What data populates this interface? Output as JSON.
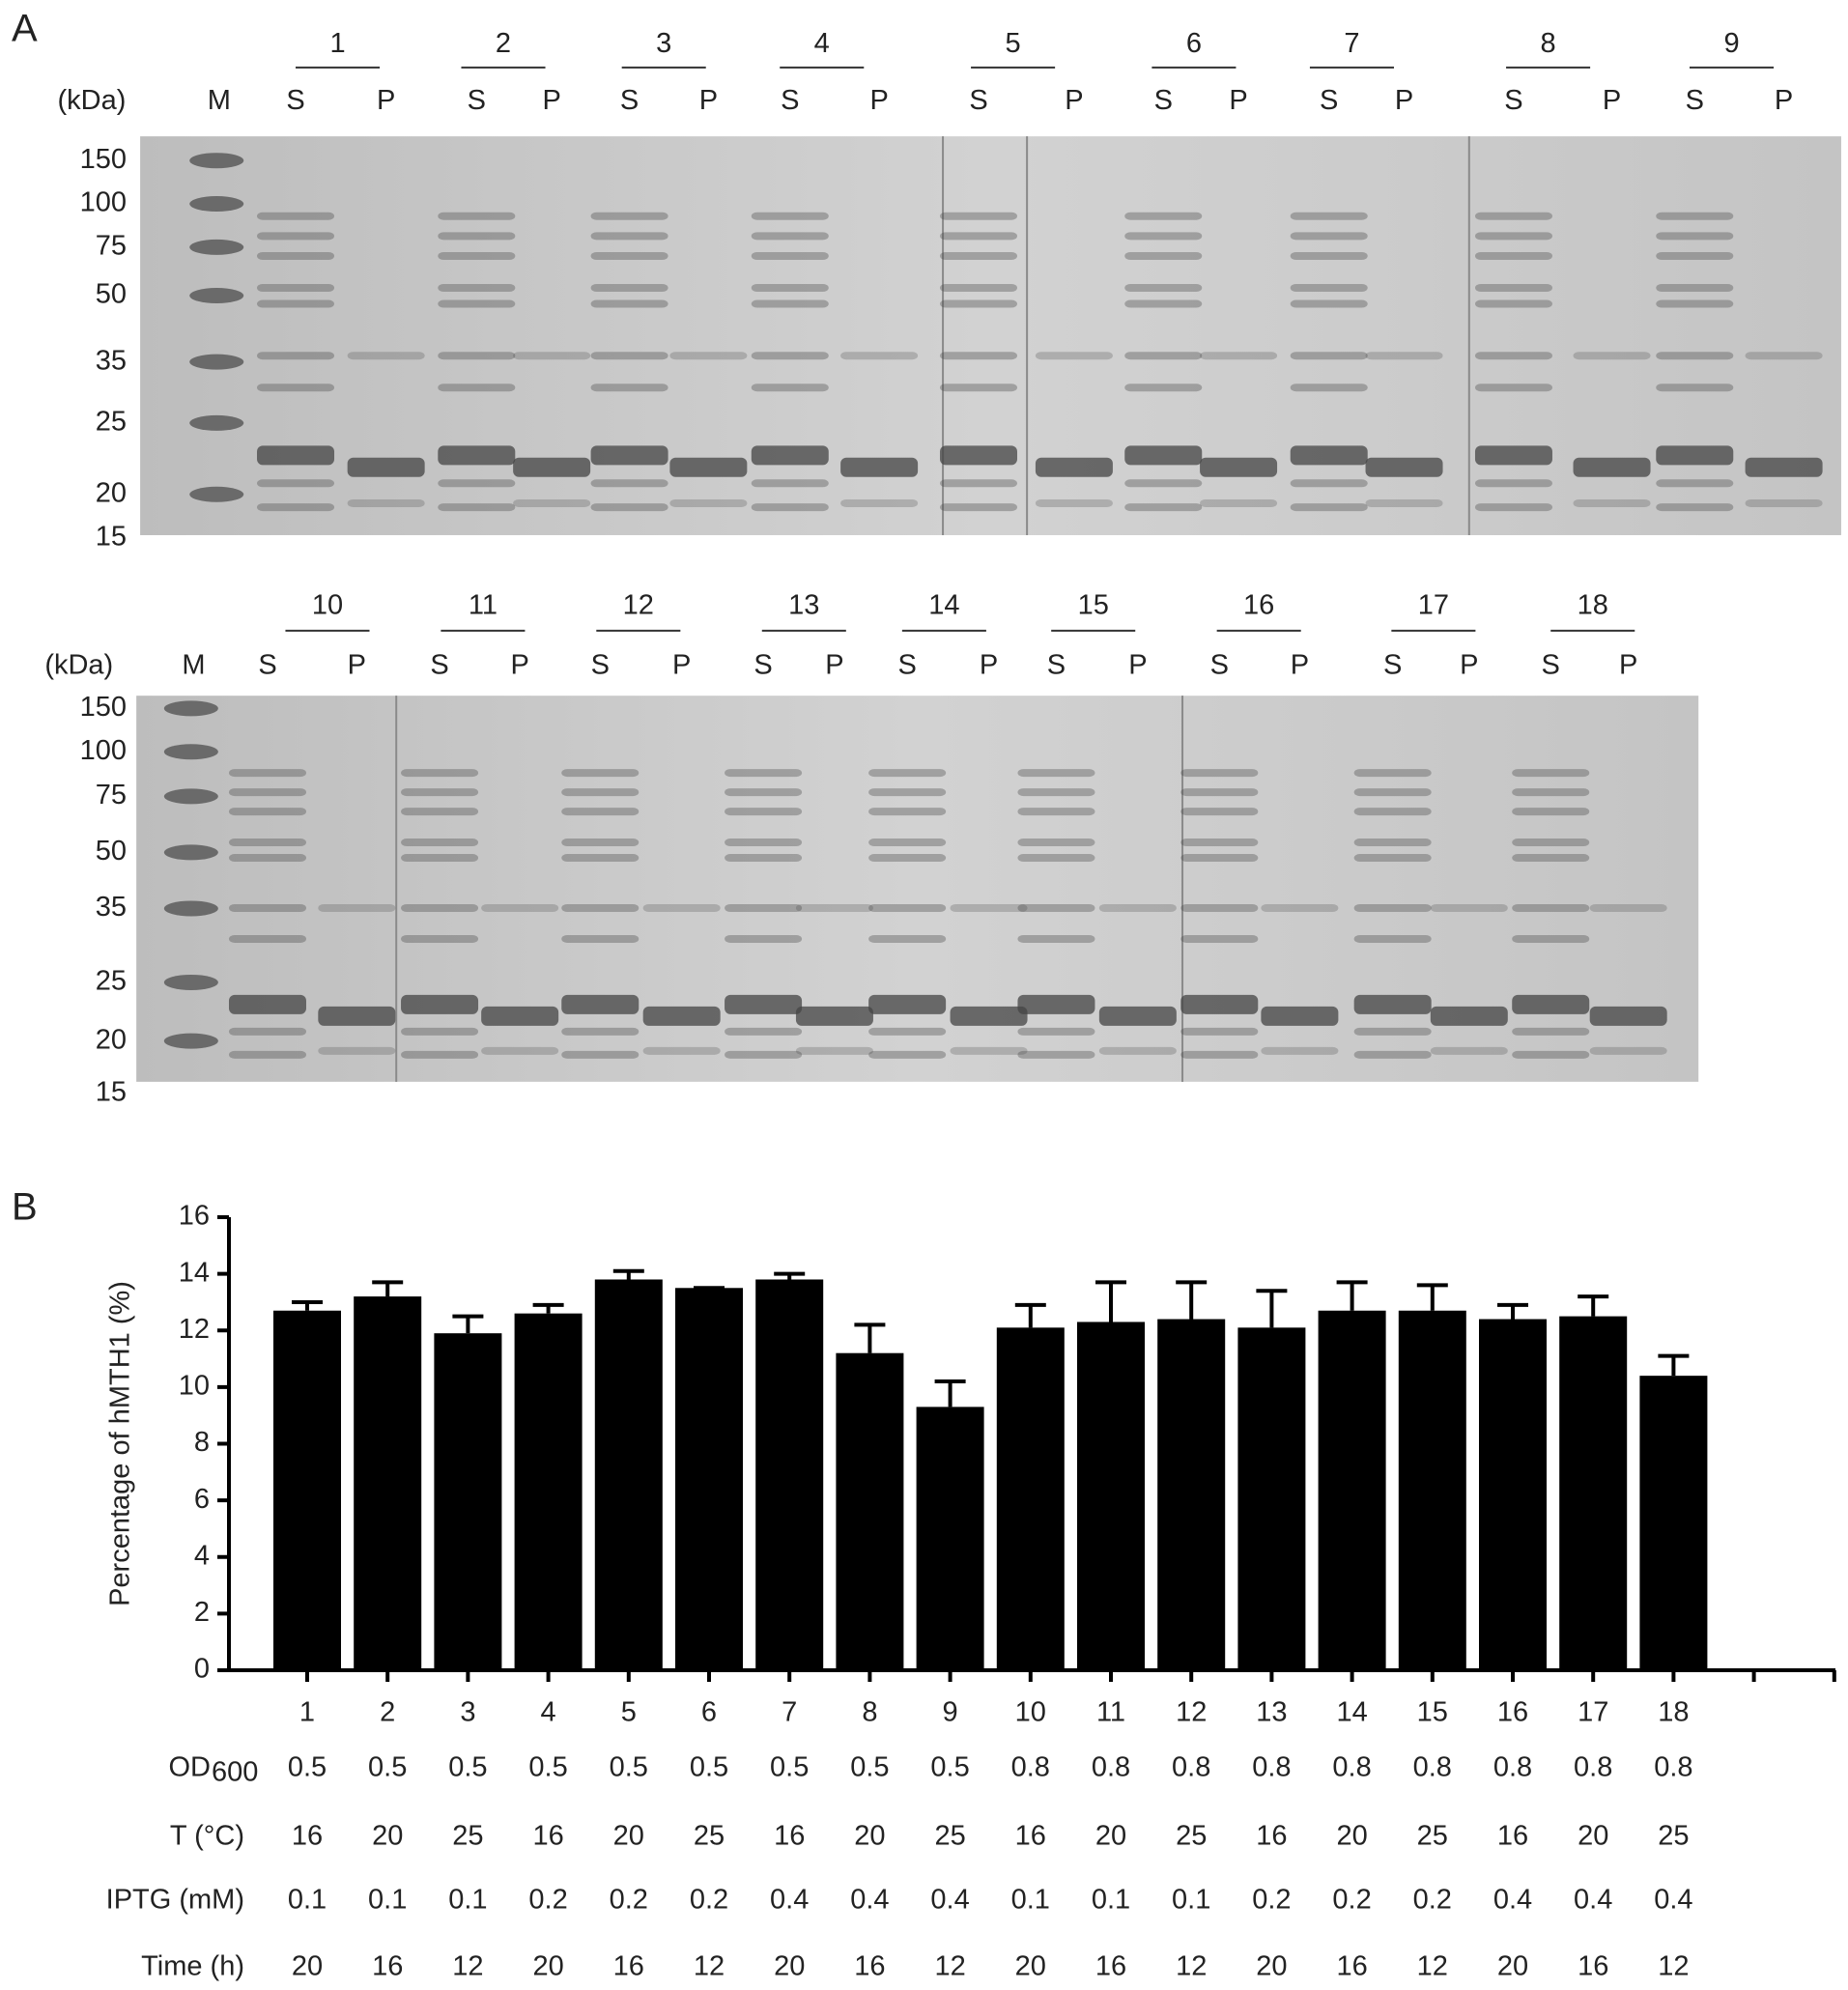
{
  "panel_a": {
    "label": "A",
    "unit": "(kDa)",
    "marker_label": "M",
    "gels": [
      {
        "markers": [
          150,
          100,
          75,
          50,
          35,
          25,
          20,
          15
        ],
        "groups": [
          {
            "label": "1",
            "lanes": [
              "S",
              "P"
            ]
          },
          {
            "label": "2",
            "lanes": [
              "S",
              "P"
            ]
          },
          {
            "label": "3",
            "lanes": [
              "S",
              "P"
            ]
          },
          {
            "label": "4",
            "lanes": [
              "S",
              "P"
            ]
          },
          {
            "label": "5",
            "lanes": [
              "S",
              "P"
            ]
          },
          {
            "label": "6",
            "lanes": [
              "S",
              "P"
            ]
          },
          {
            "label": "7",
            "lanes": [
              "S",
              "P"
            ]
          },
          {
            "label": "8",
            "lanes": [
              "S",
              "P"
            ]
          },
          {
            "label": "9",
            "lanes": [
              "S",
              "P"
            ]
          }
        ]
      },
      {
        "markers": [
          150,
          100,
          75,
          50,
          35,
          25,
          20,
          15
        ],
        "groups": [
          {
            "label": "10",
            "lanes": [
              "S",
              "P"
            ]
          },
          {
            "label": "11",
            "lanes": [
              "S",
              "P"
            ]
          },
          {
            "label": "12",
            "lanes": [
              "S",
              "P"
            ]
          },
          {
            "label": "13",
            "lanes": [
              "S",
              "P"
            ]
          },
          {
            "label": "14",
            "lanes": [
              "S",
              "P"
            ]
          },
          {
            "label": "15",
            "lanes": [
              "S",
              "P"
            ]
          },
          {
            "label": "16",
            "lanes": [
              "S",
              "P"
            ]
          },
          {
            "label": "17",
            "lanes": [
              "S",
              "P"
            ]
          },
          {
            "label": "18",
            "lanes": [
              "S",
              "P"
            ]
          }
        ]
      }
    ]
  },
  "chart_data": {
    "type": "bar",
    "panel_label": "B",
    "y_label": "Percentage of hMTH1 (%)",
    "categories": [
      "1",
      "2",
      "3",
      "4",
      "5",
      "6",
      "7",
      "8",
      "9",
      "10",
      "11",
      "12",
      "13",
      "14",
      "15",
      "16",
      "17",
      "18",
      null,
      null
    ],
    "values": [
      12.7,
      13.2,
      11.9,
      12.6,
      13.8,
      13.5,
      13.8,
      11.2,
      9.3,
      12.1,
      12.3,
      12.4,
      12.1,
      12.7,
      12.7,
      12.4,
      12.5,
      10.4,
      null,
      null
    ],
    "errors": [
      0.3,
      0.5,
      0.6,
      0.3,
      0.3,
      0,
      0.2,
      1.0,
      0.9,
      0.8,
      1.4,
      1.3,
      1.3,
      1.0,
      0.9,
      0.5,
      0.7,
      0.7,
      null,
      null
    ],
    "color": "#000000",
    "ylim": [
      0,
      16
    ],
    "yticks": [
      0,
      2,
      4,
      6,
      8,
      10,
      12,
      14,
      16
    ]
  },
  "conditions": {
    "rows": [
      {
        "label": "OD",
        "label_subscript": "600",
        "values": [
          0.5,
          0.5,
          0.5,
          0.5,
          0.5,
          0.5,
          0.5,
          0.5,
          0.5,
          0.8,
          0.8,
          0.8,
          0.8,
          0.8,
          0.8,
          0.8,
          0.8,
          0.8
        ]
      },
      {
        "label": "T (°C)",
        "values": [
          16,
          20,
          25,
          16,
          20,
          25,
          16,
          20,
          25,
          16,
          20,
          25,
          16,
          20,
          25,
          16,
          20,
          25
        ]
      },
      {
        "label": "IPTG (mM)",
        "values": [
          0.1,
          0.1,
          0.1,
          0.2,
          0.2,
          0.2,
          0.4,
          0.4,
          0.4,
          0.1,
          0.1,
          0.1,
          0.2,
          0.2,
          0.2,
          0.4,
          0.4,
          0.4
        ]
      },
      {
        "label": "Time (h)",
        "values": [
          20,
          16,
          12,
          20,
          16,
          12,
          20,
          16,
          12,
          20,
          16,
          12,
          20,
          16,
          12,
          20,
          16,
          12
        ]
      }
    ]
  }
}
